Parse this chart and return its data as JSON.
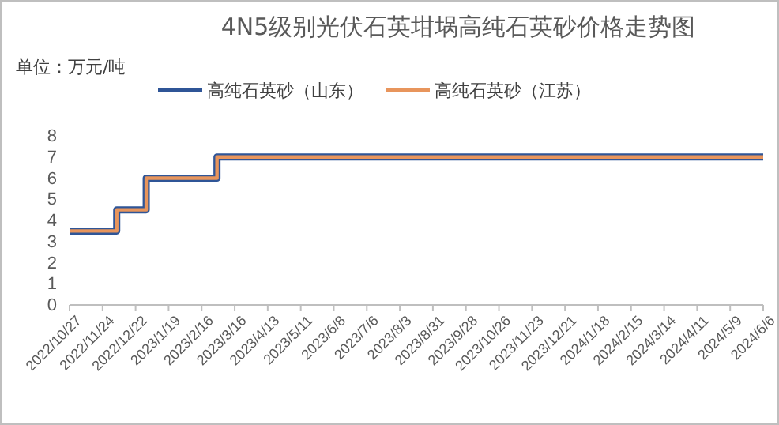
{
  "chart_data": {
    "type": "step",
    "title": "4N5级别光伏石英坩埚高纯石英砂价格走势图",
    "ylabel": "单位：万元/吨",
    "series": [
      {
        "name": "高纯石英砂（山东）",
        "color": "#2f5597",
        "x": [
          "2022-10-27",
          "2022-12-06",
          "2022-12-31",
          "2023-03-01",
          "2024-06-06"
        ],
        "values": [
          3.5,
          4.5,
          6,
          7,
          7
        ]
      },
      {
        "name": "高纯石英砂（江苏）",
        "color": "#e8955c",
        "x": [
          "2022-10-27",
          "2022-12-06",
          "2022-12-31",
          "2023-03-01",
          "2024-06-06"
        ],
        "values": [
          3.5,
          4.5,
          6,
          7,
          7
        ]
      }
    ],
    "xlim": [
      "2022-10-27",
      "2024-06-06"
    ],
    "xticks": [
      {
        "value": "2022-10-27",
        "label": "2022/10/27"
      },
      {
        "value": "2022-11-24",
        "label": "2022/11/24"
      },
      {
        "value": "2022-12-22",
        "label": "2022/12/22"
      },
      {
        "value": "2023-01-19",
        "label": "2023/1/19"
      },
      {
        "value": "2023-02-16",
        "label": "2023/2/16"
      },
      {
        "value": "2023-03-16",
        "label": "2023/3/16"
      },
      {
        "value": "2023-04-13",
        "label": "2023/4/13"
      },
      {
        "value": "2023-05-11",
        "label": "2023/5/11"
      },
      {
        "value": "2023-06-08",
        "label": "2023/6/8"
      },
      {
        "value": "2023-07-06",
        "label": "2023/7/6"
      },
      {
        "value": "2023-08-03",
        "label": "2023/8/3"
      },
      {
        "value": "2023-08-31",
        "label": "2023/8/31"
      },
      {
        "value": "2023-09-28",
        "label": "2023/9/28"
      },
      {
        "value": "2023-10-26",
        "label": "2023/10/26"
      },
      {
        "value": "2023-11-23",
        "label": "2023/11/23"
      },
      {
        "value": "2023-12-21",
        "label": "2023/12/21"
      },
      {
        "value": "2024-01-18",
        "label": "2024/1/18"
      },
      {
        "value": "2024-02-15",
        "label": "2024/2/15"
      },
      {
        "value": "2024-03-14",
        "label": "2024/3/14"
      },
      {
        "value": "2024-04-11",
        "label": "2024/4/11"
      },
      {
        "value": "2024-05-09",
        "label": "2024/5/9"
      },
      {
        "value": "2024-06-06",
        "label": "2024/6/6"
      }
    ],
    "ylim": [
      0,
      8
    ],
    "yticks": [
      0,
      1,
      2,
      3,
      4,
      5,
      6,
      7,
      8
    ],
    "grid": false,
    "legend": "top",
    "line_style": "solid",
    "marker": "none"
  }
}
